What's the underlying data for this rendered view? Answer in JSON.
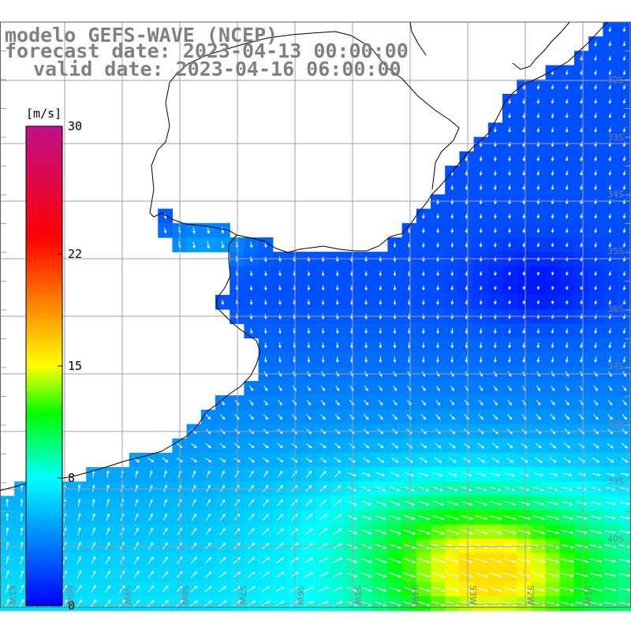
{
  "title": {
    "model": "modelo GEFS-WAVE (NCEP)",
    "forecast": "forecast date: 2023-04-13 00:00:00",
    "valid": "valid date: 2023-04-16 06:00:00"
  },
  "colorbar": {
    "unit": "[m/s]",
    "ticks": [
      "30",
      "22",
      "15",
      "8",
      "0"
    ],
    "tick_values": [
      30,
      22,
      15,
      8,
      0
    ],
    "range": [
      0,
      30
    ],
    "stops": [
      {
        "v": 0,
        "c": "#0000ff"
      },
      {
        "v": 4,
        "c": "#0080ff"
      },
      {
        "v": 8,
        "c": "#00ffff"
      },
      {
        "v": 12,
        "c": "#00ff00"
      },
      {
        "v": 15,
        "c": "#ffff00"
      },
      {
        "v": 19,
        "c": "#ff8000"
      },
      {
        "v": 23,
        "c": "#ff0000"
      },
      {
        "v": 30,
        "c": "#c0108a"
      }
    ]
  },
  "lat_labels": [
    "32S",
    "33S",
    "34S",
    "35S",
    "36S",
    "37S",
    "38S",
    "39S",
    "40S"
  ],
  "lon_labels": [
    "61W",
    "60W",
    "59W",
    "58W",
    "57W",
    "56W",
    "55W",
    "54W",
    "53W",
    "52W",
    "51W"
  ],
  "colors": {
    "grid": "#a0a0a0",
    "coast": "#000000",
    "label": "#808080",
    "arrow": "#ffffff",
    "land": "#ffffff"
  }
}
